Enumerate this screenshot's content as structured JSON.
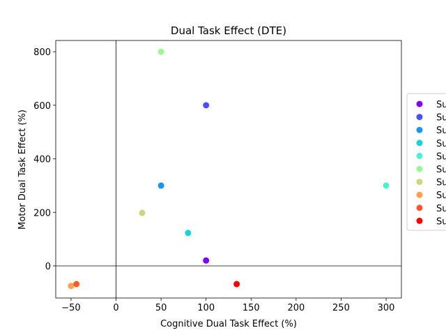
{
  "chart_data": {
    "type": "scatter",
    "title": "Dual Task Effect (DTE)",
    "xlabel": "Cognitive Dual Task Effect (%)",
    "ylabel": "Motor Dual Task Effect (%)",
    "xlim": [
      -67,
      317
    ],
    "ylim": [
      -120,
      842
    ],
    "xticks": [
      -50,
      0,
      50,
      100,
      150,
      200,
      250,
      300
    ],
    "yticks": [
      0,
      200,
      400,
      600,
      800
    ],
    "grid": false,
    "reference_lines": {
      "x": 0,
      "y": 0
    },
    "legend_position": "right",
    "series": [
      {
        "name": "Su",
        "color": "#8000ff",
        "x": 100,
        "y": 20
      },
      {
        "name": "Su",
        "color": "#4b4ff9",
        "x": 100,
        "y": 600
      },
      {
        "name": "Su",
        "color": "#1996f3",
        "x": 50,
        "y": 300
      },
      {
        "name": "Su",
        "color": "#1ad1dc",
        "x": 80,
        "y": 123
      },
      {
        "name": "Su",
        "color": "#4cf2ce",
        "x": 300,
        "y": 300
      },
      {
        "name": "Su",
        "color": "#99f797",
        "x": 50,
        "y": 800
      },
      {
        "name": "Su",
        "color": "#cfd67a",
        "x": 29,
        "y": 198
      },
      {
        "name": "Su",
        "color": "#ff9f52",
        "x": -50,
        "y": -75
      },
      {
        "name": "Su",
        "color": "#ff5a2d",
        "x": -44,
        "y": -68
      },
      {
        "name": "Su",
        "color": "#ff0000",
        "x": 134,
        "y": -68
      }
    ]
  }
}
